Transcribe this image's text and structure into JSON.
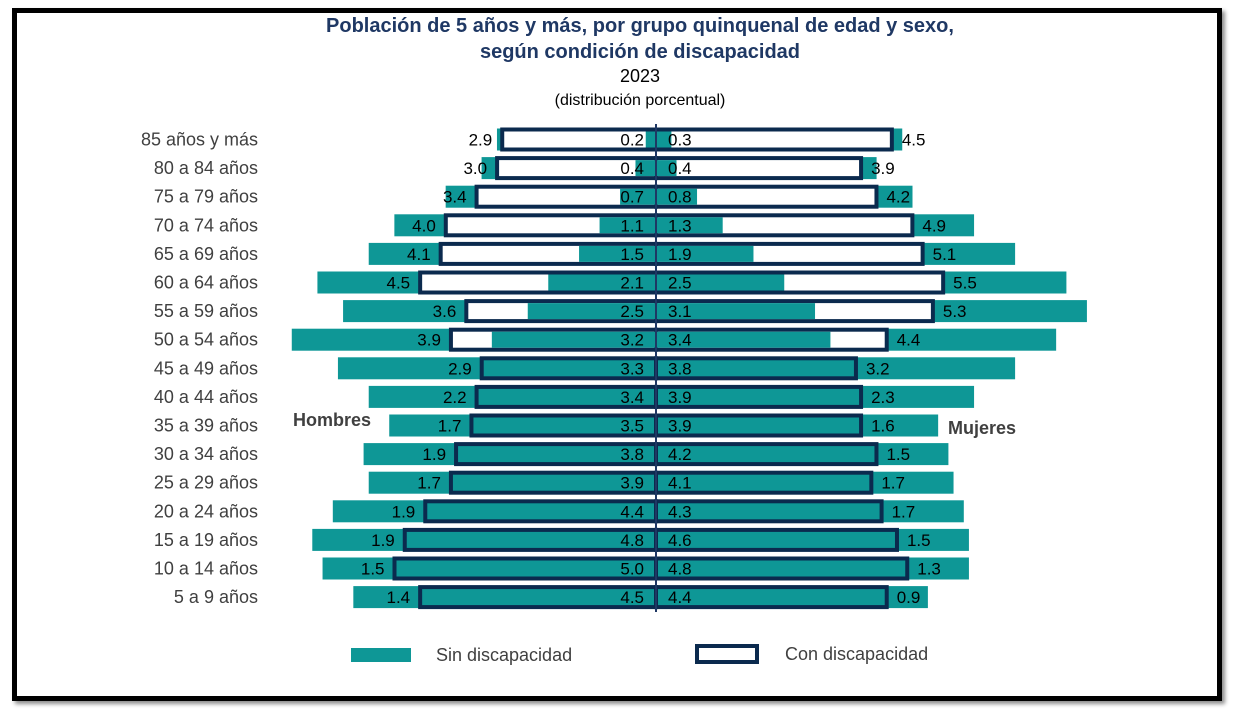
{
  "colors": {
    "sin": "#0e9796",
    "con_stroke": "#0b2a4e",
    "title": "#1f3864"
  },
  "chart_data": {
    "type": "bar",
    "subtype": "population-pyramid",
    "title_line1": "Población de 5 años y más, por grupo quinquenal de edad y sexo,",
    "title_line2": "según condición de discapacidad",
    "year": "2023",
    "note": "(distribución porcentual)",
    "left_label": "Hombres",
    "right_label": "Mujeres",
    "legend": [
      "Sin discapacidad",
      "Con discapacidad"
    ],
    "categories": [
      "85 años y más",
      "80 a 84 años",
      "75 a 79 años",
      "70 a 74 años",
      "65 a 69 años",
      "60 a 64 años",
      "55 a 59 años",
      "50 a 54 años",
      "45 a 49 años",
      "40 a 44 años",
      "35 a 39 años",
      "30 a 34 años",
      "25 a 29 años",
      "20 a 24 años",
      "15 a 19 años",
      "10 a 14 años",
      "5 a 9 años"
    ],
    "series": [
      {
        "name": "Sin discapacidad",
        "side": "Hombres",
        "values": [
          0.2,
          0.4,
          0.7,
          1.1,
          1.5,
          2.1,
          2.5,
          3.2,
          3.3,
          3.4,
          3.5,
          3.8,
          3.9,
          4.4,
          4.8,
          5.0,
          4.5
        ]
      },
      {
        "name": "Con discapacidad",
        "side": "Hombres",
        "values": [
          2.9,
          3.0,
          3.4,
          4.0,
          4.1,
          4.5,
          3.6,
          3.9,
          2.9,
          2.2,
          1.7,
          1.9,
          1.7,
          1.9,
          1.9,
          1.5,
          1.4
        ]
      },
      {
        "name": "Sin discapacidad",
        "side": "Mujeres",
        "values": [
          0.3,
          0.4,
          0.8,
          1.3,
          1.9,
          2.5,
          3.1,
          3.4,
          3.8,
          3.9,
          3.9,
          4.2,
          4.1,
          4.3,
          4.6,
          4.8,
          4.4
        ]
      },
      {
        "name": "Con discapacidad",
        "side": "Mujeres",
        "values": [
          4.5,
          3.9,
          4.2,
          4.9,
          5.1,
          5.5,
          5.3,
          4.4,
          3.2,
          2.3,
          1.6,
          1.5,
          1.7,
          1.7,
          1.5,
          1.3,
          0.9
        ]
      }
    ],
    "value_labels": {
      "hombres_sin": [
        "0.2",
        "0.4",
        "0.7",
        "1.1",
        "1.5",
        "2.1",
        "2.5",
        "3.2",
        "3.3",
        "3.4",
        "3.5",
        "3.8",
        "3.9",
        "4.4",
        "4.8",
        "5.0",
        "4.5"
      ],
      "hombres_con": [
        "2.9",
        "3.0",
        "3.4",
        "4.0",
        "4.1",
        "4.5",
        "3.6",
        "3.9",
        "2.9",
        "2.2",
        "1.7",
        "1.9",
        "1.7",
        "1.9",
        "1.9",
        "1.5",
        "1.4"
      ],
      "mujeres_sin": [
        "0.3",
        "0.4",
        "0.8",
        "1.3",
        "1.9",
        "2.5",
        "3.1",
        "3.4",
        "3.8",
        "3.9",
        "3.9",
        "4.2",
        "4.1",
        "4.3",
        "4.6",
        "4.8",
        "4.4"
      ],
      "mujeres_con": [
        "4.5",
        "3.9",
        "4.2",
        "4.9",
        "5.1",
        "5.5",
        "5.3",
        "4.4",
        "3.2",
        "2.3",
        "1.6",
        "1.5",
        "1.7",
        "1.7",
        "1.5",
        "1.3",
        "0.9"
      ]
    },
    "grid": false,
    "legend_position": "bottom"
  }
}
